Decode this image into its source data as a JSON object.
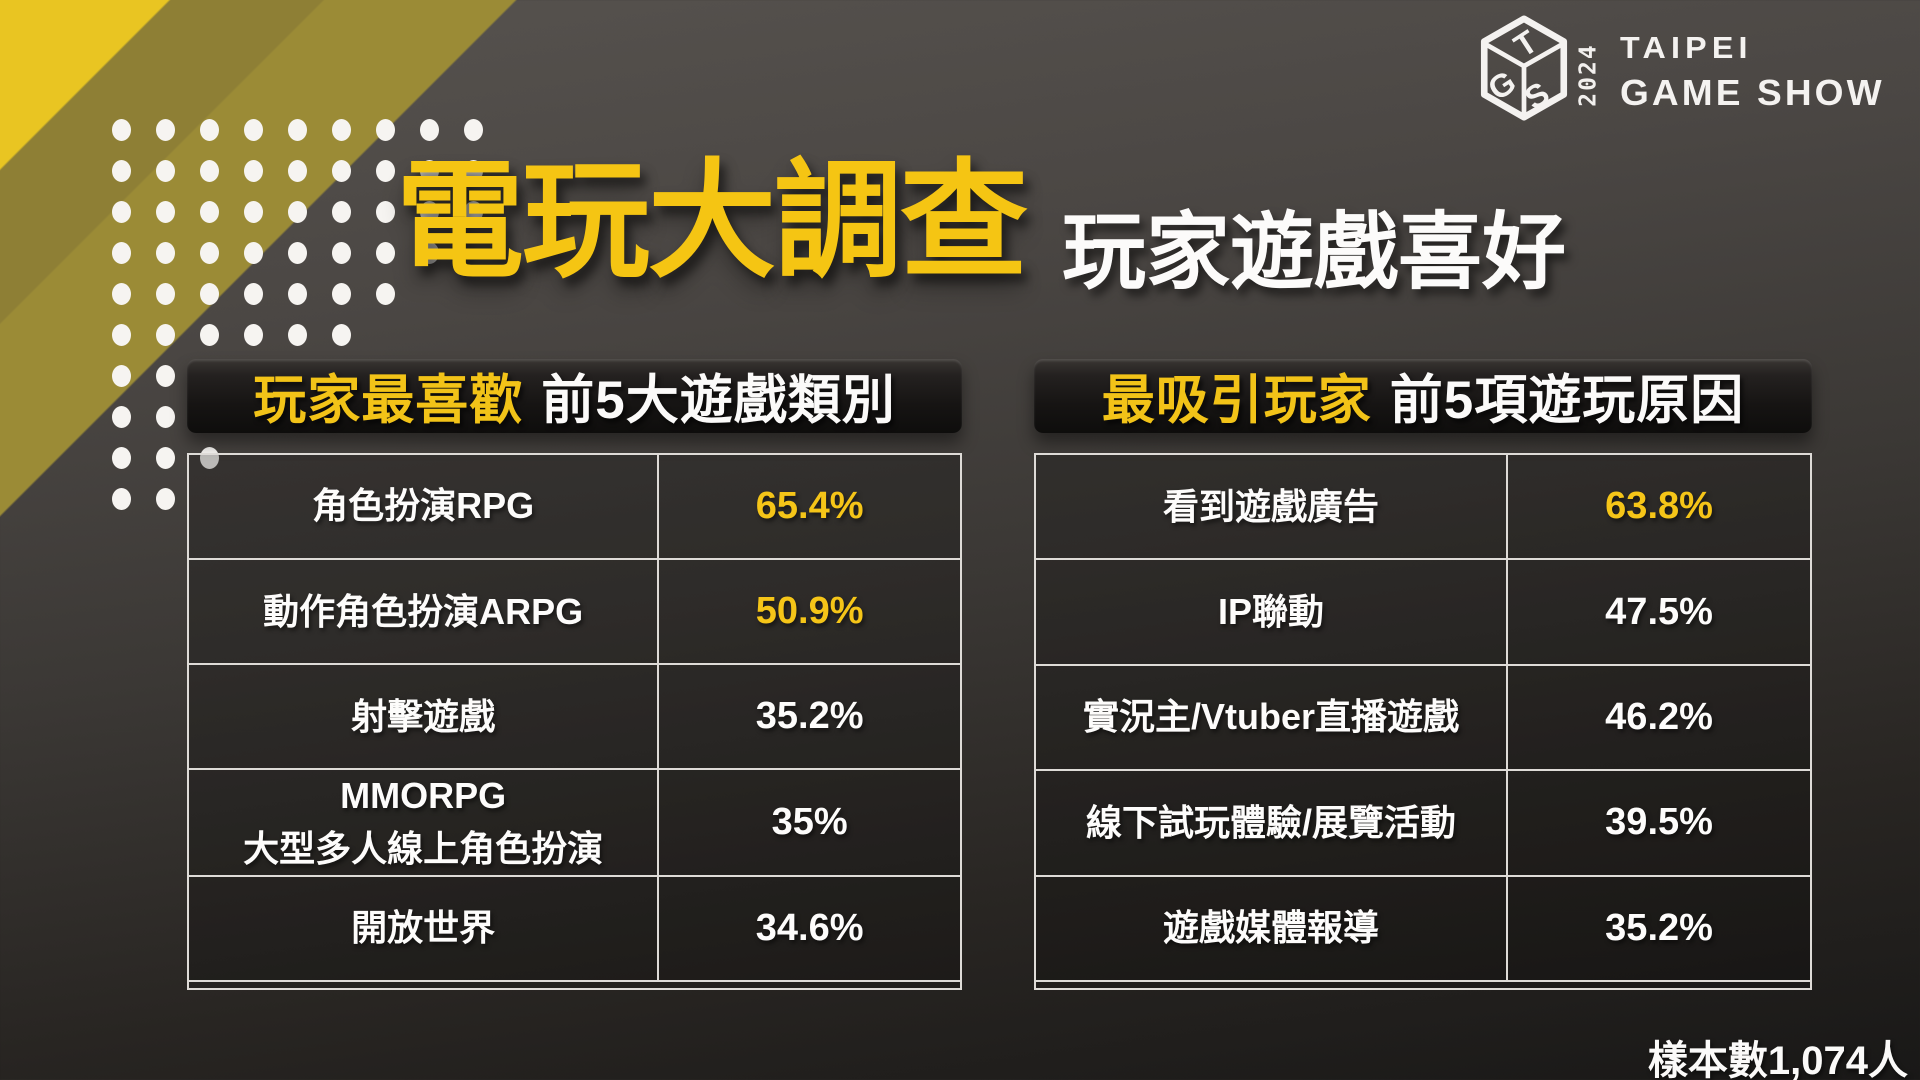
{
  "header": {
    "title_main": "電玩大調查",
    "title_sub": "玩家遊戲喜好"
  },
  "logo": {
    "t": "T",
    "g": "G",
    "s": "S",
    "year": "2024",
    "wordmark_line1": "TAIPEI",
    "wordmark_line2": "GAME SHOW"
  },
  "tables": [
    {
      "header_highlight": "玩家最喜歡",
      "header_rest": "前5大遊戲類別",
      "rows": [
        {
          "label": "角色扮演RPG",
          "value": "65.4%",
          "highlight": true
        },
        {
          "label": "動作角色扮演ARPG",
          "value": "50.9%",
          "highlight": true
        },
        {
          "label": "射擊遊戲",
          "value": "35.2%",
          "highlight": false
        },
        {
          "label": "MMORPG",
          "label2": "大型多人線上角色扮演",
          "value": "35%",
          "highlight": false
        },
        {
          "label": "開放世界",
          "value": "34.6%",
          "highlight": false
        }
      ]
    },
    {
      "header_highlight": "最吸引玩家",
      "header_rest": "前5項遊玩原因",
      "rows": [
        {
          "label": "看到遊戲廣告",
          "value": "63.8%",
          "highlight": true
        },
        {
          "label": "IP聯動",
          "value": "47.5%",
          "highlight": false
        },
        {
          "label": "實況主/Vtuber直播遊戲",
          "value": "46.2%",
          "highlight": false
        },
        {
          "label": "線下試玩體驗/展覽活動",
          "value": "39.5%",
          "highlight": false
        },
        {
          "label": "遊戲媒體報導",
          "value": "35.2%",
          "highlight": false
        }
      ]
    }
  ],
  "footer": {
    "sample_note": "樣本數1,074人"
  },
  "colors": {
    "accent_yellow": "#f5c513",
    "stripe_yellow": "#e9c522",
    "stripe_olive_1": "#8e7f35",
    "stripe_olive_2": "#9b8b36",
    "header_bar_dark": "#161413",
    "table_border": "#dedbd7",
    "text_white": "#fbfaf9"
  },
  "chart_data": [
    {
      "type": "table",
      "title": "玩家最喜歡 前5大遊戲類別",
      "categories": [
        "角色扮演RPG",
        "動作角色扮演ARPG",
        "射擊遊戲",
        "MMORPG 大型多人線上角色扮演",
        "開放世界"
      ],
      "values": [
        65.4,
        50.9,
        35.2,
        35,
        34.6
      ],
      "unit": "%"
    },
    {
      "type": "table",
      "title": "最吸引玩家 前5項遊玩原因",
      "categories": [
        "看到遊戲廣告",
        "IP聯動",
        "實況主/Vtuber直播遊戲",
        "線下試玩體驗/展覽活動",
        "遊戲媒體報導"
      ],
      "values": [
        63.8,
        47.5,
        46.2,
        39.5,
        35.2
      ],
      "unit": "%",
      "sample_note": "樣本數1,074人"
    }
  ]
}
